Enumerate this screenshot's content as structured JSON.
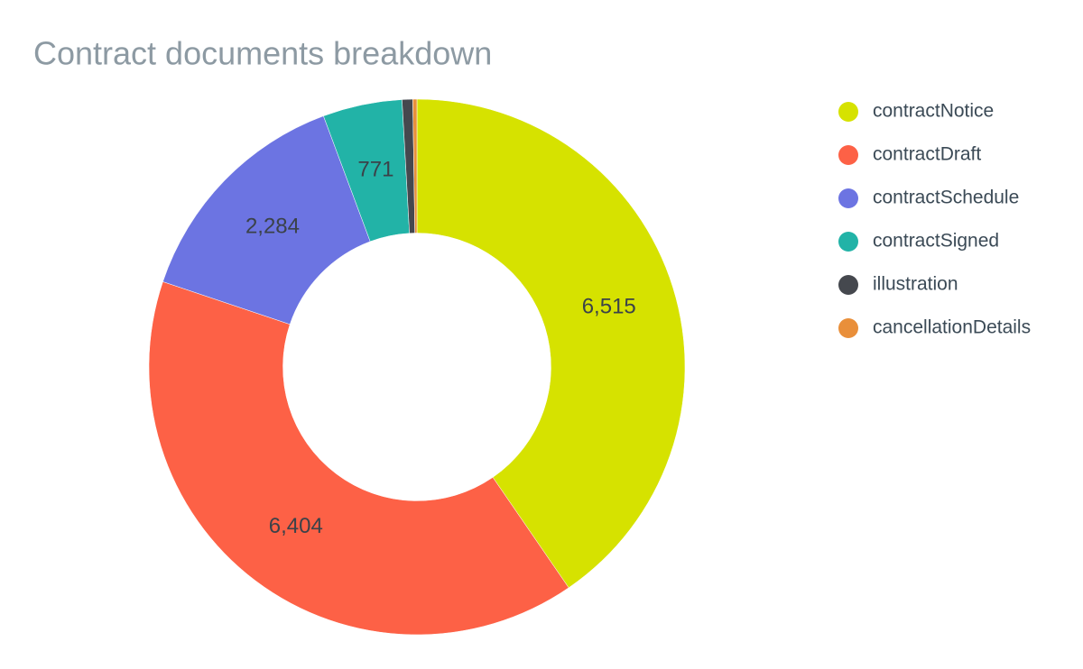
{
  "chart_data": {
    "type": "donut",
    "title": "Contract documents breakdown",
    "categories": [
      "contractNotice",
      "contractDraft",
      "contractSchedule",
      "contractSigned",
      "illustration",
      "cancellationDetails"
    ],
    "values": [
      6515,
      6404,
      2284,
      771,
      103,
      40
    ],
    "value_labels": [
      "6,515",
      "6,404",
      "2,284",
      "771",
      null,
      null
    ],
    "colors": [
      "#d6e200",
      "#fd6146",
      "#6c74e2",
      "#22b3a7",
      "#45484e",
      "#e98f3a"
    ],
    "hole": 0.5,
    "direction": "clockwise",
    "legend": "right"
  }
}
